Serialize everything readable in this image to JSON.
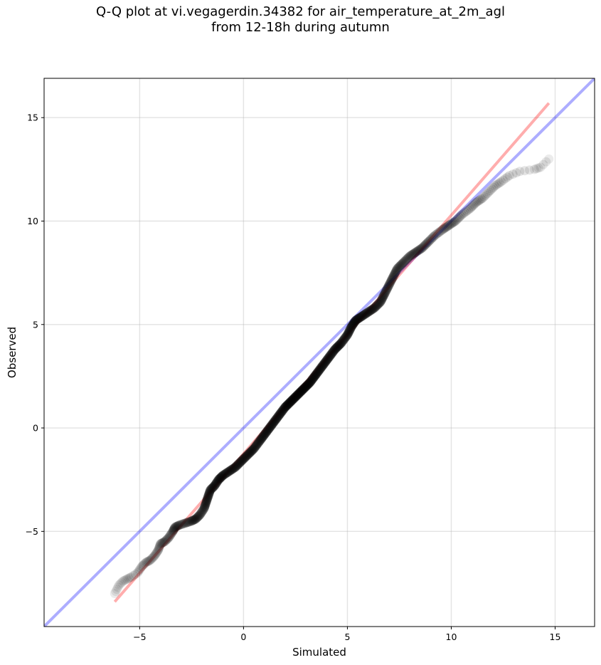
{
  "chart_data": {
    "type": "scatter",
    "title_line1": "Q-Q plot at vi.vegagerdin.34382 for air_temperature_at_2m_agl",
    "title_line2": "from 12-18h during autumn",
    "xlabel": "Simulated",
    "ylabel": "Observed",
    "xlim": [
      -9.6,
      16.9
    ],
    "ylim": [
      -9.6,
      16.9
    ],
    "xticks": [
      -5,
      0,
      5,
      10,
      15
    ],
    "yticks": [
      -5,
      0,
      5,
      10,
      15
    ],
    "xtick_labels": [
      "−5",
      "0",
      "5",
      "10",
      "15"
    ],
    "ytick_labels": [
      "−5",
      "0",
      "5",
      "10",
      "15"
    ],
    "grid": true,
    "identity_line": {
      "color": "#0000ff",
      "points": [
        [
          -9.6,
          -9.6
        ],
        [
          16.9,
          16.9
        ]
      ]
    },
    "fit_line": {
      "color": "#ff0000",
      "points": [
        [
          -6.2,
          -8.4
        ],
        [
          14.7,
          15.7
        ]
      ]
    },
    "point_color": "#000000",
    "quantiles": [
      {
        "x": -6.2,
        "y": -8.0
      },
      {
        "x": -6.1,
        "y": -7.8
      },
      {
        "x": -6.0,
        "y": -7.6
      },
      {
        "x": -5.8,
        "y": -7.4
      },
      {
        "x": -5.6,
        "y": -7.3
      },
      {
        "x": -5.4,
        "y": -7.2
      },
      {
        "x": -5.1,
        "y": -7.0
      },
      {
        "x": -4.9,
        "y": -6.7
      },
      {
        "x": -4.7,
        "y": -6.5
      },
      {
        "x": -4.5,
        "y": -6.4
      },
      {
        "x": -4.3,
        "y": -6.2
      },
      {
        "x": -4.1,
        "y": -5.9
      },
      {
        "x": -4.0,
        "y": -5.6
      },
      {
        "x": -3.8,
        "y": -5.5
      },
      {
        "x": -3.6,
        "y": -5.3
      },
      {
        "x": -3.4,
        "y": -5.0
      },
      {
        "x": -3.3,
        "y": -4.8
      },
      {
        "x": -3.1,
        "y": -4.7
      },
      {
        "x": -2.8,
        "y": -4.6
      },
      {
        "x": -2.5,
        "y": -4.5
      },
      {
        "x": -2.3,
        "y": -4.4
      },
      {
        "x": -2.1,
        "y": -4.2
      },
      {
        "x": -1.9,
        "y": -3.9
      },
      {
        "x": -1.8,
        "y": -3.6
      },
      {
        "x": -1.7,
        "y": -3.3
      },
      {
        "x": -1.6,
        "y": -3.0
      },
      {
        "x": -1.4,
        "y": -2.8
      },
      {
        "x": -1.2,
        "y": -2.5
      },
      {
        "x": -1.0,
        "y": -2.3
      },
      {
        "x": -0.7,
        "y": -2.1
      },
      {
        "x": -0.4,
        "y": -1.9
      },
      {
        "x": -0.1,
        "y": -1.6
      },
      {
        "x": 0.2,
        "y": -1.3
      },
      {
        "x": 0.5,
        "y": -1.0
      },
      {
        "x": 0.8,
        "y": -0.6
      },
      {
        "x": 1.1,
        "y": -0.2
      },
      {
        "x": 1.4,
        "y": 0.2
      },
      {
        "x": 1.7,
        "y": 0.6
      },
      {
        "x": 2.0,
        "y": 1.0
      },
      {
        "x": 2.3,
        "y": 1.3
      },
      {
        "x": 2.6,
        "y": 1.6
      },
      {
        "x": 2.9,
        "y": 1.9
      },
      {
        "x": 3.2,
        "y": 2.2
      },
      {
        "x": 3.5,
        "y": 2.6
      },
      {
        "x": 3.8,
        "y": 3.0
      },
      {
        "x": 4.1,
        "y": 3.4
      },
      {
        "x": 4.4,
        "y": 3.8
      },
      {
        "x": 4.7,
        "y": 4.1
      },
      {
        "x": 5.0,
        "y": 4.5
      },
      {
        "x": 5.2,
        "y": 4.9
      },
      {
        "x": 5.4,
        "y": 5.2
      },
      {
        "x": 5.7,
        "y": 5.4
      },
      {
        "x": 6.0,
        "y": 5.6
      },
      {
        "x": 6.3,
        "y": 5.8
      },
      {
        "x": 6.6,
        "y": 6.1
      },
      {
        "x": 6.8,
        "y": 6.5
      },
      {
        "x": 7.0,
        "y": 6.9
      },
      {
        "x": 7.2,
        "y": 7.3
      },
      {
        "x": 7.4,
        "y": 7.7
      },
      {
        "x": 7.7,
        "y": 8.0
      },
      {
        "x": 8.0,
        "y": 8.3
      },
      {
        "x": 8.3,
        "y": 8.5
      },
      {
        "x": 8.6,
        "y": 8.7
      },
      {
        "x": 8.9,
        "y": 9.0
      },
      {
        "x": 9.2,
        "y": 9.3
      },
      {
        "x": 9.6,
        "y": 9.6
      },
      {
        "x": 9.9,
        "y": 9.8
      },
      {
        "x": 10.2,
        "y": 10.0
      },
      {
        "x": 10.5,
        "y": 10.3
      },
      {
        "x": 10.9,
        "y": 10.6
      },
      {
        "x": 11.2,
        "y": 10.9
      },
      {
        "x": 11.5,
        "y": 11.1
      },
      {
        "x": 11.8,
        "y": 11.4
      },
      {
        "x": 12.1,
        "y": 11.7
      },
      {
        "x": 12.4,
        "y": 11.9
      },
      {
        "x": 12.8,
        "y": 12.2
      },
      {
        "x": 13.3,
        "y": 12.4
      },
      {
        "x": 14.0,
        "y": 12.5
      },
      {
        "x": 14.3,
        "y": 12.6
      },
      {
        "x": 14.7,
        "y": 13.0
      }
    ]
  }
}
